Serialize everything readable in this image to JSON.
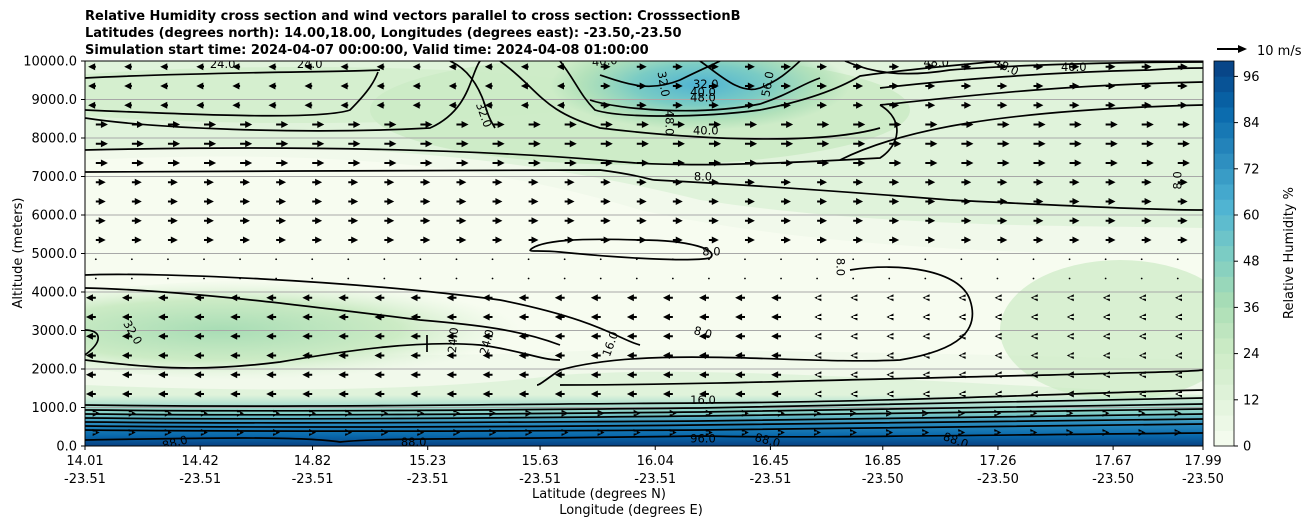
{
  "chart_data": {
    "type": "contour",
    "title": [
      "Relative Humidity cross section and wind vectors parallel to cross section: CrosssectionB",
      "Latitudes (degrees north): 14.00,18.00, Longitudes (degrees east): -23.50,-23.50",
      "Simulation start time: 2024-04-07 00:00:00, Valid time: 2024-04-08 01:00:00"
    ],
    "ylabel": "Altitude (meters)",
    "xlabel_lat": "Latitude (degrees N)",
    "xlabel_lon": "Longitude (degrees E)",
    "ylim": [
      0,
      10000
    ],
    "yticks": [
      "0.0",
      "1000.0",
      "2000.0",
      "3000.0",
      "4000.0",
      "5000.0",
      "6000.0",
      "7000.0",
      "8000.0",
      "9000.0",
      "10000.0"
    ],
    "xlim": [
      14.01,
      17.99
    ],
    "xticks_lat": [
      "14.01",
      "14.42",
      "14.82",
      "15.23",
      "15.63",
      "16.04",
      "16.45",
      "16.85",
      "17.26",
      "17.67",
      "17.99"
    ],
    "xticks_lon": [
      "-23.51",
      "-23.51",
      "-23.51",
      "-23.51",
      "-23.51",
      "-23.51",
      "-23.51",
      "-23.50",
      "-23.50",
      "-23.50",
      "-23.50"
    ],
    "colorbar": {
      "label": "Relative Humidity %",
      "range": [
        0,
        100
      ],
      "step": 4,
      "ticks": [
        "0",
        "12",
        "24",
        "36",
        "48",
        "60",
        "72",
        "84",
        "96"
      ],
      "colors": [
        "#f7fcf0",
        "#e0f3db",
        "#ccebc5",
        "#a8ddb5",
        "#7bccc4",
        "#4eb3d3",
        "#2b8cbe",
        "#0868ac",
        "#084081"
      ]
    },
    "quiver_key": {
      "label": "10 m/s"
    },
    "contour_levels": [
      8,
      16,
      24,
      32,
      40,
      48,
      56,
      64,
      72,
      80,
      88,
      96
    ],
    "contour_labels": [
      {
        "text": "24.0",
        "x": 14.5,
        "y": 9920,
        "rot": 0
      },
      {
        "text": "24.0",
        "x": 14.81,
        "y": 9920,
        "rot": 0
      },
      {
        "text": "40.0",
        "x": 15.86,
        "y": 10000,
        "rot": -5
      },
      {
        "text": "32.0",
        "x": 16.07,
        "y": 9400,
        "rot": 80
      },
      {
        "text": "32.0",
        "x": 16.22,
        "y": 9400,
        "rot": 0
      },
      {
        "text": "40.0",
        "x": 16.21,
        "y": 9200,
        "rot": 0
      },
      {
        "text": "48.0",
        "x": 16.21,
        "y": 9050,
        "rot": 0
      },
      {
        "text": "56.0",
        "x": 16.44,
        "y": 9400,
        "rot": -80
      },
      {
        "text": "48.0",
        "x": 17.04,
        "y": 9960,
        "rot": 0
      },
      {
        "text": "48.0",
        "x": 17.29,
        "y": 9850,
        "rot": 25
      },
      {
        "text": "40.0",
        "x": 17.53,
        "y": 9850,
        "rot": 0
      },
      {
        "text": "32.0",
        "x": 15.43,
        "y": 8600,
        "rot": 70
      },
      {
        "text": "40.0",
        "x": 16.22,
        "y": 8200,
        "rot": 0
      },
      {
        "text": "48.0",
        "x": 16.09,
        "y": 8400,
        "rot": 90
      },
      {
        "text": "8.0",
        "x": 16.21,
        "y": 7000,
        "rot": 0
      },
      {
        "text": "8.0",
        "x": 17.9,
        "y": 6900,
        "rot": -90
      },
      {
        "text": "8.0",
        "x": 16.24,
        "y": 5050,
        "rot": 0
      },
      {
        "text": "8.0",
        "x": 16.7,
        "y": 4650,
        "rot": 90
      },
      {
        "text": "32.0",
        "x": 14.18,
        "y": 2950,
        "rot": 60
      },
      {
        "text": "24.0",
        "x": 15.32,
        "y": 2750,
        "rot": -85
      },
      {
        "text": "24.0",
        "x": 15.44,
        "y": 2700,
        "rot": -75
      },
      {
        "text": "16.0",
        "x": 15.88,
        "y": 2650,
        "rot": -70
      },
      {
        "text": "8.0",
        "x": 16.21,
        "y": 2950,
        "rot": 15
      },
      {
        "text": "16.0",
        "x": 16.21,
        "y": 1190,
        "rot": 0
      },
      {
        "text": "88.0",
        "x": 14.33,
        "y": 90,
        "rot": -15
      },
      {
        "text": "88.0",
        "x": 15.18,
        "y": 100,
        "rot": 0
      },
      {
        "text": "96.0",
        "x": 16.21,
        "y": 200,
        "rot": 0
      },
      {
        "text": "88.0",
        "x": 16.44,
        "y": 150,
        "rot": 15
      },
      {
        "text": "88.0",
        "x": 17.11,
        "y": 150,
        "rot": 20
      }
    ],
    "features": {
      "moist_layer_top_m": 1000,
      "saturated_layer_top_m": 400,
      "upper_moist_core": {
        "x": 16.5,
        "y": 9400,
        "max_rh": 60
      },
      "lower_moist_band": {
        "x_range": [
          14.01,
          15.6
        ],
        "y_range": [
          2000,
          4000
        ],
        "rh": 36
      },
      "dry_layer": {
        "y_range": [
          4200,
          7000
        ],
        "rh": 8
      }
    }
  }
}
